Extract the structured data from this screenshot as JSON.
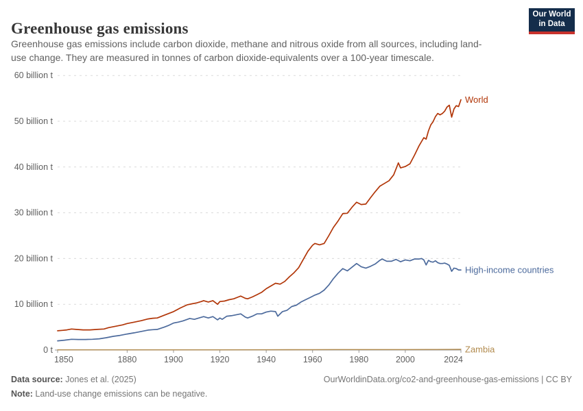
{
  "header": {
    "title": "Greenhouse gas emissions",
    "subtitle": "Greenhouse gas emissions include carbon dioxide, methane and nitrous oxide from all sources, including land-use change. They are measured in tonnes of carbon dioxide-equivalents over a 100-year timescale.",
    "logo": {
      "line1": "Our World",
      "line2": "in Data",
      "bg_color": "#142D4B",
      "accent_color": "#C8322D"
    }
  },
  "chart_data": {
    "type": "line",
    "title": "Greenhouse gas emissions",
    "xlabel": "",
    "ylabel": "",
    "x_range": [
      1850,
      2024
    ],
    "ylim": [
      0,
      60
    ],
    "grid": "horizontal-dashed",
    "legend_position": "end-of-line-labels",
    "y_ticks": [
      {
        "value": 0,
        "label": "0 t"
      },
      {
        "value": 10,
        "label": "10 billion t"
      },
      {
        "value": 20,
        "label": "20 billion t"
      },
      {
        "value": 30,
        "label": "30 billion t"
      },
      {
        "value": 40,
        "label": "40 billion t"
      },
      {
        "value": 50,
        "label": "50 billion t"
      },
      {
        "value": 60,
        "label": "60 billion t"
      }
    ],
    "x_ticks": [
      1850,
      1880,
      1900,
      1920,
      1940,
      1960,
      1980,
      2000,
      2024
    ],
    "series": [
      {
        "name": "World",
        "color": "#B13507",
        "points": [
          [
            1850,
            4.2
          ],
          [
            1852,
            4.3
          ],
          [
            1854,
            4.4
          ],
          [
            1856,
            4.6
          ],
          [
            1858,
            4.5
          ],
          [
            1861,
            4.4
          ],
          [
            1864,
            4.4
          ],
          [
            1867,
            4.5
          ],
          [
            1870,
            4.6
          ],
          [
            1872,
            4.9
          ],
          [
            1875,
            5.2
          ],
          [
            1878,
            5.5
          ],
          [
            1880,
            5.8
          ],
          [
            1883,
            6.1
          ],
          [
            1886,
            6.4
          ],
          [
            1889,
            6.8
          ],
          [
            1891,
            6.95
          ],
          [
            1893,
            7.0
          ],
          [
            1896,
            7.6
          ],
          [
            1898,
            8.0
          ],
          [
            1900,
            8.4
          ],
          [
            1903,
            9.2
          ],
          [
            1906,
            9.9
          ],
          [
            1908,
            10.1
          ],
          [
            1910,
            10.3
          ],
          [
            1912,
            10.6
          ],
          [
            1913,
            10.8
          ],
          [
            1915,
            10.5
          ],
          [
            1917,
            10.8
          ],
          [
            1919,
            10.0
          ],
          [
            1920,
            10.6
          ],
          [
            1922,
            10.7
          ],
          [
            1924,
            11.0
          ],
          [
            1926,
            11.2
          ],
          [
            1928,
            11.6
          ],
          [
            1929,
            11.8
          ],
          [
            1931,
            11.3
          ],
          [
            1932,
            11.2
          ],
          [
            1934,
            11.6
          ],
          [
            1936,
            12.1
          ],
          [
            1938,
            12.6
          ],
          [
            1940,
            13.4
          ],
          [
            1942,
            14.0
          ],
          [
            1944,
            14.6
          ],
          [
            1946,
            14.4
          ],
          [
            1948,
            15.0
          ],
          [
            1950,
            16.0
          ],
          [
            1952,
            16.9
          ],
          [
            1954,
            18.0
          ],
          [
            1956,
            19.8
          ],
          [
            1958,
            21.6
          ],
          [
            1960,
            22.9
          ],
          [
            1961,
            23.3
          ],
          [
            1963,
            23.0
          ],
          [
            1965,
            23.3
          ],
          [
            1967,
            25.0
          ],
          [
            1969,
            26.8
          ],
          [
            1971,
            28.2
          ],
          [
            1973,
            29.8
          ],
          [
            1975,
            29.9
          ],
          [
            1977,
            31.2
          ],
          [
            1979,
            32.3
          ],
          [
            1981,
            31.8
          ],
          [
            1983,
            31.9
          ],
          [
            1985,
            33.3
          ],
          [
            1987,
            34.6
          ],
          [
            1989,
            35.8
          ],
          [
            1991,
            36.4
          ],
          [
            1993,
            37.0
          ],
          [
            1995,
            38.3
          ],
          [
            1997,
            40.9
          ],
          [
            1998,
            39.8
          ],
          [
            2000,
            40.1
          ],
          [
            2002,
            40.7
          ],
          [
            2004,
            42.6
          ],
          [
            2006,
            44.7
          ],
          [
            2008,
            46.4
          ],
          [
            2009,
            46.1
          ],
          [
            2010,
            47.9
          ],
          [
            2011,
            49.2
          ],
          [
            2012,
            49.9
          ],
          [
            2013,
            51.0
          ],
          [
            2014,
            51.7
          ],
          [
            2015,
            51.4
          ],
          [
            2016,
            51.7
          ],
          [
            2017,
            52.2
          ],
          [
            2018,
            53.1
          ],
          [
            2019,
            53.5
          ],
          [
            2020,
            50.9
          ],
          [
            2021,
            52.7
          ],
          [
            2022,
            53.4
          ],
          [
            2023,
            53.2
          ],
          [
            2024,
            54.7
          ]
        ]
      },
      {
        "name": "High-income countries",
        "color": "#4C6A9C",
        "points": [
          [
            1850,
            2.0
          ],
          [
            1853,
            2.15
          ],
          [
            1856,
            2.35
          ],
          [
            1859,
            2.3
          ],
          [
            1862,
            2.3
          ],
          [
            1865,
            2.35
          ],
          [
            1868,
            2.45
          ],
          [
            1871,
            2.7
          ],
          [
            1874,
            3.0
          ],
          [
            1877,
            3.2
          ],
          [
            1880,
            3.5
          ],
          [
            1883,
            3.75
          ],
          [
            1886,
            4.05
          ],
          [
            1889,
            4.35
          ],
          [
            1891,
            4.45
          ],
          [
            1893,
            4.5
          ],
          [
            1896,
            5.0
          ],
          [
            1898,
            5.4
          ],
          [
            1900,
            5.9
          ],
          [
            1902,
            6.1
          ],
          [
            1904,
            6.35
          ],
          [
            1906,
            6.7
          ],
          [
            1907,
            6.9
          ],
          [
            1909,
            6.7
          ],
          [
            1911,
            7.0
          ],
          [
            1913,
            7.3
          ],
          [
            1915,
            7.0
          ],
          [
            1917,
            7.3
          ],
          [
            1919,
            6.6
          ],
          [
            1920,
            7.0
          ],
          [
            1921,
            6.7
          ],
          [
            1923,
            7.4
          ],
          [
            1925,
            7.5
          ],
          [
            1927,
            7.7
          ],
          [
            1929,
            7.9
          ],
          [
            1931,
            7.2
          ],
          [
            1932,
            7.0
          ],
          [
            1934,
            7.4
          ],
          [
            1936,
            7.9
          ],
          [
            1938,
            7.9
          ],
          [
            1940,
            8.3
          ],
          [
            1942,
            8.5
          ],
          [
            1944,
            8.4
          ],
          [
            1945,
            7.4
          ],
          [
            1947,
            8.4
          ],
          [
            1949,
            8.7
          ],
          [
            1951,
            9.5
          ],
          [
            1953,
            9.8
          ],
          [
            1955,
            10.5
          ],
          [
            1957,
            11.0
          ],
          [
            1959,
            11.5
          ],
          [
            1961,
            12.0
          ],
          [
            1963,
            12.4
          ],
          [
            1965,
            13.1
          ],
          [
            1967,
            14.2
          ],
          [
            1969,
            15.6
          ],
          [
            1971,
            16.8
          ],
          [
            1973,
            17.8
          ],
          [
            1975,
            17.3
          ],
          [
            1977,
            18.1
          ],
          [
            1979,
            18.9
          ],
          [
            1981,
            18.2
          ],
          [
            1983,
            17.9
          ],
          [
            1985,
            18.3
          ],
          [
            1987,
            18.8
          ],
          [
            1989,
            19.6
          ],
          [
            1990,
            19.9
          ],
          [
            1992,
            19.4
          ],
          [
            1994,
            19.4
          ],
          [
            1996,
            19.8
          ],
          [
            1998,
            19.3
          ],
          [
            2000,
            19.7
          ],
          [
            2002,
            19.5
          ],
          [
            2004,
            19.9
          ],
          [
            2006,
            19.9
          ],
          [
            2007,
            20.0
          ],
          [
            2008,
            19.7
          ],
          [
            2009,
            18.6
          ],
          [
            2010,
            19.6
          ],
          [
            2011,
            19.3
          ],
          [
            2012,
            19.2
          ],
          [
            2013,
            19.5
          ],
          [
            2014,
            19.1
          ],
          [
            2015,
            18.9
          ],
          [
            2016,
            18.9
          ],
          [
            2017,
            19.0
          ],
          [
            2018,
            18.8
          ],
          [
            2019,
            18.5
          ],
          [
            2020,
            17.2
          ],
          [
            2021,
            17.9
          ],
          [
            2022,
            17.8
          ],
          [
            2023,
            17.5
          ],
          [
            2024,
            17.5
          ]
        ]
      },
      {
        "name": "Zambia",
        "color": "#B18A4D",
        "points": [
          [
            1850,
            0.04
          ],
          [
            1880,
            0.04
          ],
          [
            1900,
            0.05
          ],
          [
            1920,
            0.05
          ],
          [
            1940,
            0.06
          ],
          [
            1950,
            0.07
          ],
          [
            1960,
            0.09
          ],
          [
            1970,
            0.1
          ],
          [
            1980,
            0.1
          ],
          [
            1990,
            0.1
          ],
          [
            2000,
            0.1
          ],
          [
            2010,
            0.12
          ],
          [
            2020,
            0.14
          ],
          [
            2024,
            0.15
          ]
        ]
      }
    ]
  },
  "footer": {
    "source_label": "Data source:",
    "source_value": " Jones et al. (2025)",
    "note_label": "Note:",
    "note_value": " Land-use change emissions can be negative.",
    "url_text": "OurWorldinData.org/co2-and-greenhouse-gas-emissions | CC BY"
  }
}
